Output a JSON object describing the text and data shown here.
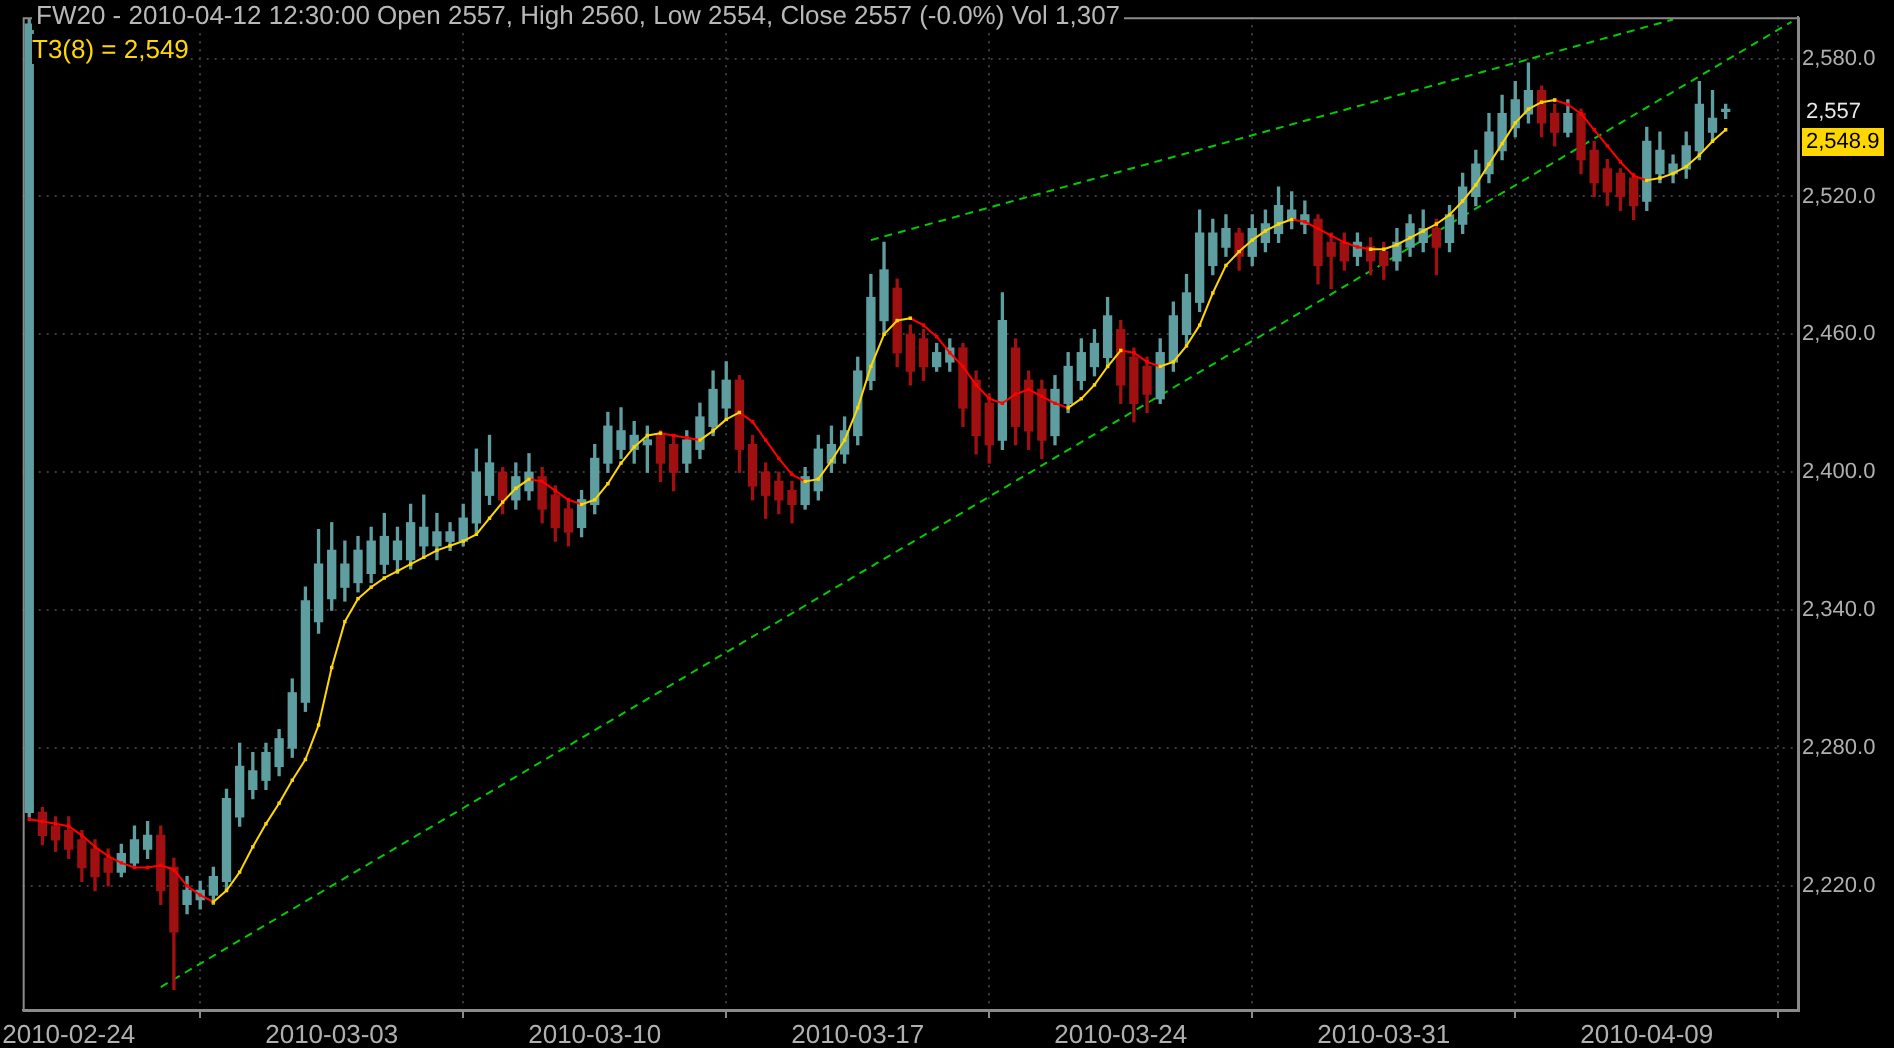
{
  "chart_data": {
    "type": "candlestick",
    "title": "FW20 - 2010-04-12 12:30:00 Open 2557, High 2560, Low 2554, Close 2557 (-0.0%) Vol 1,307",
    "annotations": [
      "T3(8) = 2,549",
      "2,557",
      "2,548.9"
    ],
    "categories": [
      null,
      null,
      null,
      "2010-02-24",
      null,
      null,
      null,
      null,
      null,
      null,
      null,
      null,
      null,
      null,
      null,
      null,
      null,
      null,
      null,
      null,
      null,
      null,
      null,
      "2010-03-03",
      null,
      null,
      null,
      null,
      null,
      null,
      null,
      null,
      null,
      null,
      null,
      null,
      null,
      null,
      null,
      null,
      null,
      null,
      null,
      "2010-03-10",
      null,
      null,
      null,
      null,
      null,
      null,
      null,
      null,
      null,
      null,
      null,
      null,
      null,
      null,
      null,
      null,
      null,
      null,
      null,
      "2010-03-17",
      null,
      null,
      null,
      null,
      null,
      null,
      null,
      null,
      null,
      null,
      null,
      null,
      null,
      null,
      null,
      null,
      null,
      null,
      null,
      "2010-03-24",
      null,
      null,
      null,
      null,
      null,
      null,
      null,
      null,
      null,
      null,
      null,
      null,
      null,
      null,
      null,
      null,
      null,
      null,
      null,
      "2010-03-31",
      null,
      null,
      null,
      null,
      null,
      null,
      null,
      null,
      null,
      null,
      null,
      null,
      null,
      null,
      null,
      null,
      null,
      null,
      null,
      "2010-04-09",
      null,
      null,
      null,
      null,
      null,
      null,
      null,
      null,
      null,
      null,
      null
    ],
    "ohlc": [
      [
        2252,
        2597,
        2250,
        2595
      ],
      [
        2252,
        2254,
        2238,
        2242
      ],
      [
        2246,
        2250,
        2235,
        2240
      ],
      [
        2244,
        2250,
        2232,
        2236
      ],
      [
        2240,
        2244,
        2222,
        2228
      ],
      [
        2236,
        2240,
        2218,
        2224
      ],
      [
        2232,
        2236,
        2220,
        2226
      ],
      [
        2226,
        2238,
        2224,
        2234
      ],
      [
        2230,
        2246,
        2228,
        2240
      ],
      [
        2236,
        2248,
        2232,
        2242
      ],
      [
        2242,
        2246,
        2212,
        2218
      ],
      [
        2228,
        2232,
        2175,
        2200
      ],
      [
        2212,
        2224,
        2208,
        2218
      ],
      [
        2214,
        2222,
        2210,
        2218
      ],
      [
        2216,
        2228,
        2212,
        2224
      ],
      [
        2222,
        2262,
        2218,
        2258
      ],
      [
        2250,
        2282,
        2246,
        2272
      ],
      [
        2262,
        2278,
        2258,
        2270
      ],
      [
        2266,
        2282,
        2262,
        2278
      ],
      [
        2272,
        2288,
        2268,
        2284
      ],
      [
        2280,
        2310,
        2276,
        2304
      ],
      [
        2300,
        2350,
        2296,
        2344
      ],
      [
        2335,
        2375,
        2330,
        2360
      ],
      [
        2345,
        2378,
        2340,
        2366
      ],
      [
        2350,
        2370,
        2344,
        2360
      ],
      [
        2352,
        2372,
        2348,
        2366
      ],
      [
        2356,
        2376,
        2352,
        2370
      ],
      [
        2360,
        2382,
        2356,
        2372
      ],
      [
        2362,
        2376,
        2356,
        2370
      ],
      [
        2362,
        2386,
        2358,
        2378
      ],
      [
        2368,
        2390,
        2364,
        2376
      ],
      [
        2368,
        2382,
        2362,
        2374
      ],
      [
        2370,
        2378,
        2366,
        2374
      ],
      [
        2370,
        2386,
        2368,
        2380
      ],
      [
        2378,
        2410,
        2374,
        2400
      ],
      [
        2390,
        2416,
        2386,
        2404
      ],
      [
        2400,
        2402,
        2382,
        2388
      ],
      [
        2388,
        2404,
        2384,
        2398
      ],
      [
        2392,
        2408,
        2388,
        2400
      ],
      [
        2398,
        2402,
        2378,
        2384
      ],
      [
        2390,
        2394,
        2370,
        2376
      ],
      [
        2384,
        2388,
        2368,
        2374
      ],
      [
        2376,
        2392,
        2372,
        2388
      ],
      [
        2386,
        2412,
        2382,
        2406
      ],
      [
        2404,
        2426,
        2400,
        2420
      ],
      [
        2410,
        2428,
        2406,
        2418
      ],
      [
        2410,
        2422,
        2404,
        2416
      ],
      [
        2412,
        2420,
        2400,
        2414
      ],
      [
        2416,
        2418,
        2396,
        2404
      ],
      [
        2412,
        2416,
        2392,
        2400
      ],
      [
        2404,
        2418,
        2400,
        2414
      ],
      [
        2410,
        2430,
        2406,
        2424
      ],
      [
        2420,
        2444,
        2416,
        2436
      ],
      [
        2428,
        2448,
        2424,
        2440
      ],
      [
        2440,
        2442,
        2400,
        2410
      ],
      [
        2412,
        2416,
        2388,
        2394
      ],
      [
        2400,
        2404,
        2380,
        2390
      ],
      [
        2396,
        2400,
        2382,
        2388
      ],
      [
        2392,
        2396,
        2378,
        2386
      ],
      [
        2386,
        2402,
        2384,
        2398
      ],
      [
        2392,
        2416,
        2388,
        2410
      ],
      [
        2404,
        2420,
        2400,
        2412
      ],
      [
        2408,
        2424,
        2404,
        2418
      ],
      [
        2416,
        2450,
        2412,
        2444
      ],
      [
        2440,
        2486,
        2436,
        2476
      ],
      [
        2466,
        2500,
        2460,
        2488
      ],
      [
        2480,
        2484,
        2446,
        2452
      ],
      [
        2460,
        2464,
        2438,
        2444
      ],
      [
        2458,
        2462,
        2440,
        2446
      ],
      [
        2446,
        2456,
        2444,
        2452
      ],
      [
        2448,
        2458,
        2444,
        2454
      ],
      [
        2454,
        2456,
        2420,
        2428
      ],
      [
        2440,
        2444,
        2408,
        2416
      ],
      [
        2430,
        2434,
        2404,
        2412
      ],
      [
        2414,
        2478,
        2410,
        2466
      ],
      [
        2454,
        2458,
        2412,
        2420
      ],
      [
        2440,
        2444,
        2410,
        2418
      ],
      [
        2436,
        2440,
        2406,
        2414
      ],
      [
        2416,
        2442,
        2412,
        2436
      ],
      [
        2430,
        2452,
        2426,
        2446
      ],
      [
        2440,
        2458,
        2436,
        2452
      ],
      [
        2446,
        2462,
        2442,
        2456
      ],
      [
        2450,
        2476,
        2446,
        2468
      ],
      [
        2462,
        2466,
        2430,
        2438
      ],
      [
        2450,
        2454,
        2422,
        2430
      ],
      [
        2446,
        2450,
        2426,
        2434
      ],
      [
        2432,
        2458,
        2430,
        2452
      ],
      [
        2448,
        2474,
        2444,
        2468
      ],
      [
        2460,
        2486,
        2456,
        2478
      ],
      [
        2474,
        2514,
        2470,
        2504
      ],
      [
        2490,
        2510,
        2486,
        2504
      ],
      [
        2498,
        2512,
        2494,
        2506
      ],
      [
        2504,
        2506,
        2488,
        2494
      ],
      [
        2494,
        2512,
        2490,
        2506
      ],
      [
        2500,
        2514,
        2496,
        2508
      ],
      [
        2504,
        2524,
        2500,
        2516
      ],
      [
        2510,
        2522,
        2506,
        2514
      ],
      [
        2508,
        2518,
        2504,
        2512
      ],
      [
        2510,
        2512,
        2482,
        2490
      ],
      [
        2500,
        2504,
        2480,
        2494
      ],
      [
        2500,
        2504,
        2488,
        2492
      ],
      [
        2494,
        2504,
        2490,
        2500
      ],
      [
        2498,
        2502,
        2486,
        2492
      ],
      [
        2496,
        2500,
        2484,
        2490
      ],
      [
        2492,
        2506,
        2488,
        2500
      ],
      [
        2498,
        2512,
        2494,
        2508
      ],
      [
        2500,
        2514,
        2496,
        2506
      ],
      [
        2506,
        2510,
        2486,
        2498
      ],
      [
        2500,
        2516,
        2496,
        2512
      ],
      [
        2508,
        2530,
        2504,
        2524
      ],
      [
        2520,
        2540,
        2516,
        2534
      ],
      [
        2530,
        2556,
        2526,
        2548
      ],
      [
        2540,
        2564,
        2536,
        2556
      ],
      [
        2550,
        2570,
        2546,
        2562
      ],
      [
        2556,
        2578,
        2552,
        2566
      ],
      [
        2566,
        2568,
        2546,
        2552
      ],
      [
        2556,
        2560,
        2542,
        2548
      ],
      [
        2548,
        2562,
        2546,
        2556
      ],
      [
        2556,
        2558,
        2530,
        2536
      ],
      [
        2540,
        2544,
        2520,
        2526
      ],
      [
        2532,
        2536,
        2516,
        2522
      ],
      [
        2530,
        2532,
        2514,
        2520
      ],
      [
        2528,
        2530,
        2510,
        2516
      ],
      [
        2518,
        2550,
        2514,
        2544
      ],
      [
        2530,
        2548,
        2526,
        2540
      ],
      [
        2530,
        2538,
        2526,
        2534
      ],
      [
        2532,
        2548,
        2528,
        2542
      ],
      [
        2540,
        2570,
        2536,
        2560
      ],
      [
        2548,
        2566,
        2544,
        2554
      ],
      [
        2557,
        2560,
        2554,
        2557
      ],
      null,
      null,
      null,
      null,
      null
    ],
    "colors": [
      "#5f9ea0",
      "#a01010",
      "#a01010",
      "#a01010",
      "#a01010",
      "#a01010",
      "#a01010",
      "#5f9ea0",
      "#5f9ea0",
      "#5f9ea0",
      "#a01010",
      "#a01010",
      "#5f9ea0",
      "#5f9ea0",
      "#5f9ea0",
      "#5f9ea0",
      "#5f9ea0",
      "#5f9ea0",
      "#5f9ea0",
      "#5f9ea0",
      "#5f9ea0",
      "#5f9ea0",
      "#5f9ea0",
      "#5f9ea0",
      "#5f9ea0",
      "#5f9ea0",
      "#5f9ea0",
      "#5f9ea0",
      "#5f9ea0",
      "#5f9ea0",
      "#5f9ea0",
      "#5f9ea0",
      "#5f9ea0",
      "#5f9ea0",
      "#5f9ea0",
      "#5f9ea0",
      "#a01010",
      "#5f9ea0",
      "#5f9ea0",
      "#a01010",
      "#a01010",
      "#a01010",
      "#5f9ea0",
      "#5f9ea0",
      "#5f9ea0",
      "#5f9ea0",
      "#5f9ea0",
      "#5f9ea0",
      "#a01010",
      "#a01010",
      "#5f9ea0",
      "#5f9ea0",
      "#5f9ea0",
      "#5f9ea0",
      "#a01010",
      "#a01010",
      "#a01010",
      "#a01010",
      "#a01010",
      "#5f9ea0",
      "#5f9ea0",
      "#5f9ea0",
      "#5f9ea0",
      "#5f9ea0",
      "#5f9ea0",
      "#5f9ea0",
      "#a01010",
      "#a01010",
      "#a01010",
      "#5f9ea0",
      "#5f9ea0",
      "#a01010",
      "#a01010",
      "#a01010",
      "#5f9ea0",
      "#a01010",
      "#a01010",
      "#a01010",
      "#5f9ea0",
      "#5f9ea0",
      "#5f9ea0",
      "#5f9ea0",
      "#5f9ea0",
      "#a01010",
      "#a01010",
      "#a01010",
      "#5f9ea0",
      "#5f9ea0",
      "#5f9ea0",
      "#5f9ea0",
      "#5f9ea0",
      "#5f9ea0",
      "#a01010",
      "#5f9ea0",
      "#5f9ea0",
      "#5f9ea0",
      "#5f9ea0",
      "#5f9ea0",
      "#a01010",
      "#a01010",
      "#a01010",
      "#5f9ea0",
      "#a01010",
      "#a01010",
      "#5f9ea0",
      "#5f9ea0",
      "#5f9ea0",
      "#a01010",
      "#5f9ea0",
      "#5f9ea0",
      "#5f9ea0",
      "#5f9ea0",
      "#5f9ea0",
      "#5f9ea0",
      "#5f9ea0",
      "#a01010",
      "#a01010",
      "#5f9ea0",
      "#a01010",
      "#a01010",
      "#a01010",
      "#a01010",
      "#a01010",
      "#5f9ea0",
      "#5f9ea0",
      "#5f9ea0",
      "#5f9ea0",
      "#5f9ea0",
      "#5f9ea0",
      "#5f9ea0",
      null,
      null,
      null,
      null,
      null
    ],
    "ylim": [
      2166,
      2598
    ],
    "yticks": [
      {
        "value": 2220,
        "label": "2,220.0"
      },
      {
        "value": 2280,
        "label": "2,280.0"
      },
      {
        "value": 2340,
        "label": "2,340.0"
      },
      {
        "value": 2400,
        "label": "2,400.0"
      },
      {
        "value": 2460,
        "label": "2,460.0"
      },
      {
        "value": 2520,
        "label": "2,520.0"
      },
      {
        "value": 2580,
        "label": "2,580.0"
      }
    ],
    "grid": true,
    "series": [
      {
        "type": "line",
        "color": "#ffd700",
        "marker": "square",
        "values": [
          null,
          null,
          null,
          null,
          null,
          null,
          null,
          null,
          null,
          null,
          null,
          null,
          null,
          null,
          2213,
          2218,
          2226,
          2237,
          2247,
          2256,
          2266,
          2275,
          2290,
          2315,
          2335,
          2345,
          2350,
          2354,
          2357,
          2360,
          2363,
          2366,
          2368,
          2370,
          2373,
          2380,
          2387,
          2393,
          2397,
          null,
          null,
          null,
          2386,
          2388,
          2395,
          2404,
          2411,
          2416,
          2417,
          null,
          null,
          2414,
          2418,
          2423,
          2426,
          null,
          null,
          null,
          null,
          2396,
          2397,
          2405,
          2414,
          2428,
          2446,
          2460,
          2466,
          2467,
          null,
          null,
          null,
          null,
          null,
          null,
          null,
          null,
          null,
          null,
          null,
          2428,
          2432,
          2438,
          2446,
          2453,
          null,
          null,
          2446,
          2448,
          2455,
          2464,
          2478,
          2490,
          2496,
          2501,
          2505,
          2508,
          2510,
          null,
          null,
          null,
          null,
          null,
          2497,
          2497,
          2499,
          2502,
          2505,
          2508,
          2512,
          2518,
          2525,
          2534,
          2543,
          2552,
          2558,
          2561,
          2562,
          null,
          null,
          null,
          null,
          null,
          null,
          2527,
          2528,
          2530,
          2533,
          2538,
          2544,
          2549,
          null,
          null,
          null,
          null,
          null
        ]
      },
      {
        "type": "line",
        "color": "#ff0000",
        "marker": "square",
        "values": [
          2249,
          2248,
          2247,
          2246,
          2242,
          2237,
          2233,
          2230,
          2228,
          2228,
          2229,
          2227,
          2220,
          2216,
          2213,
          null,
          null,
          null,
          null,
          null,
          null,
          null,
          null,
          null,
          null,
          null,
          null,
          null,
          null,
          null,
          null,
          null,
          null,
          null,
          null,
          null,
          null,
          null,
          2397,
          2396,
          2392,
          2388,
          2386,
          null,
          null,
          null,
          null,
          null,
          2417,
          2416,
          2415,
          2414,
          null,
          null,
          2426,
          2422,
          2414,
          2406,
          2399,
          2396,
          null,
          null,
          null,
          null,
          null,
          null,
          null,
          2467,
          2464,
          2459,
          2452,
          2446,
          2438,
          2432,
          2430,
          2434,
          2436,
          2433,
          2430,
          2428,
          null,
          null,
          null,
          2453,
          2452,
          2448,
          2446,
          null,
          null,
          null,
          null,
          null,
          null,
          null,
          null,
          null,
          2510,
          2509,
          2506,
          2503,
          2500,
          2498,
          2497,
          null,
          null,
          null,
          null,
          null,
          null,
          null,
          null,
          null,
          null,
          null,
          null,
          null,
          2562,
          2560,
          2556,
          2549,
          2542,
          2535,
          2529,
          2527,
          null,
          null,
          null,
          null,
          null,
          null,
          null,
          null,
          null,
          null,
          null
        ]
      },
      {
        "type": "line",
        "color": "#00cc00",
        "line_style": "dashed",
        "marker": "none",
        "values": [
          null,
          null,
          null,
          null,
          null,
          null,
          null,
          null,
          null,
          null,
          2176,
          null,
          null,
          null,
          null,
          null,
          null,
          null,
          null,
          null,
          null,
          null,
          null,
          null,
          null,
          null,
          null,
          null,
          null,
          null,
          null,
          null,
          null,
          null,
          null,
          null,
          null,
          null,
          null,
          null,
          null,
          null,
          null,
          null,
          null,
          null,
          null,
          null,
          null,
          null,
          null,
          null,
          null,
          null,
          null,
          null,
          null,
          null,
          null,
          null,
          null,
          null,
          null,
          null,
          null,
          null,
          null,
          null,
          null,
          null,
          null,
          null,
          null,
          null,
          null,
          null,
          null,
          null,
          null,
          null,
          null,
          null,
          null,
          null,
          null,
          null,
          null,
          null,
          null,
          null,
          null,
          null,
          null,
          null,
          null,
          null,
          null,
          null,
          null,
          null,
          null,
          null,
          null,
          null,
          null,
          null,
          null,
          null,
          null,
          null,
          null,
          null,
          null,
          null,
          null,
          null,
          null,
          null,
          null,
          null,
          null,
          null,
          null,
          null,
          null,
          null,
          null,
          null,
          null,
          null,
          null,
          null,
          null,
          null,
          2596
        ]
      },
      {
        "type": "line",
        "color": "#00cc00",
        "line_style": "dashed",
        "marker": "none",
        "values": [
          null,
          null,
          null,
          null,
          null,
          null,
          null,
          null,
          null,
          null,
          null,
          null,
          null,
          null,
          null,
          null,
          null,
          null,
          null,
          null,
          null,
          null,
          null,
          null,
          null,
          null,
          null,
          null,
          null,
          null,
          null,
          null,
          null,
          null,
          null,
          null,
          null,
          null,
          null,
          null,
          null,
          null,
          null,
          null,
          null,
          null,
          null,
          null,
          null,
          null,
          null,
          null,
          null,
          null,
          null,
          null,
          null,
          null,
          null,
          null,
          null,
          null,
          null,
          null,
          2501,
          null,
          null,
          null,
          null,
          null,
          null,
          null,
          null,
          null,
          null,
          null,
          null,
          null,
          null,
          null,
          null,
          null,
          null,
          null,
          null,
          null,
          null,
          null,
          null,
          null,
          null,
          null,
          null,
          null,
          null,
          null,
          null,
          null,
          null,
          null,
          null,
          null,
          null,
          null,
          null,
          null,
          null,
          null,
          null,
          null,
          null,
          null,
          null,
          null,
          null,
          null,
          null,
          null,
          null,
          null,
          null,
          null,
          null,
          null,
          null,
          2597,
          null,
          null,
          null,
          null,
          null,
          null,
          null,
          null,
          null
        ]
      }
    ]
  }
}
